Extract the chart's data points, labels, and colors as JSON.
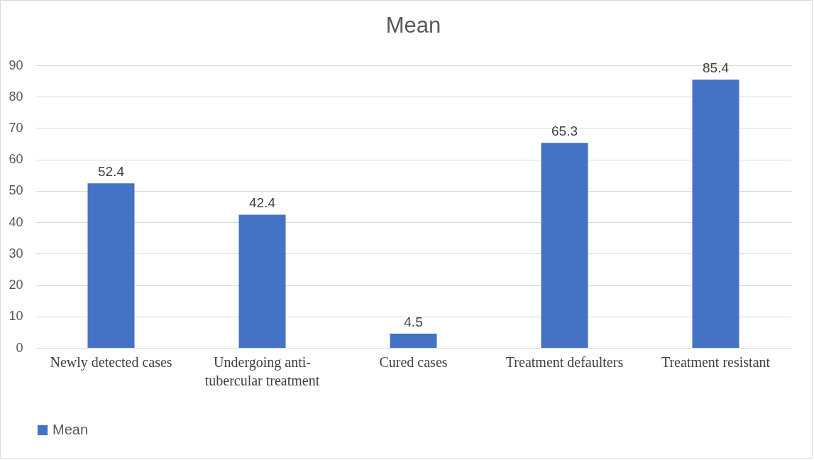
{
  "chart_data": {
    "type": "bar",
    "title": "Mean",
    "categories": [
      "Newly detected cases",
      "Undergoing anti-tubercular treatment",
      "Cured cases",
      "Treatment defaulters",
      "Treatment resistant"
    ],
    "series": [
      {
        "name": "Mean",
        "color": "#4472c4",
        "values": [
          52.4,
          42.4,
          4.5,
          65.3,
          85.4
        ]
      }
    ],
    "ylim": [
      0,
      90
    ],
    "yticks": [
      0,
      10,
      20,
      30,
      40,
      50,
      60,
      70,
      80,
      90
    ],
    "grid": "y",
    "legend": "bottom",
    "data_labels": true
  }
}
